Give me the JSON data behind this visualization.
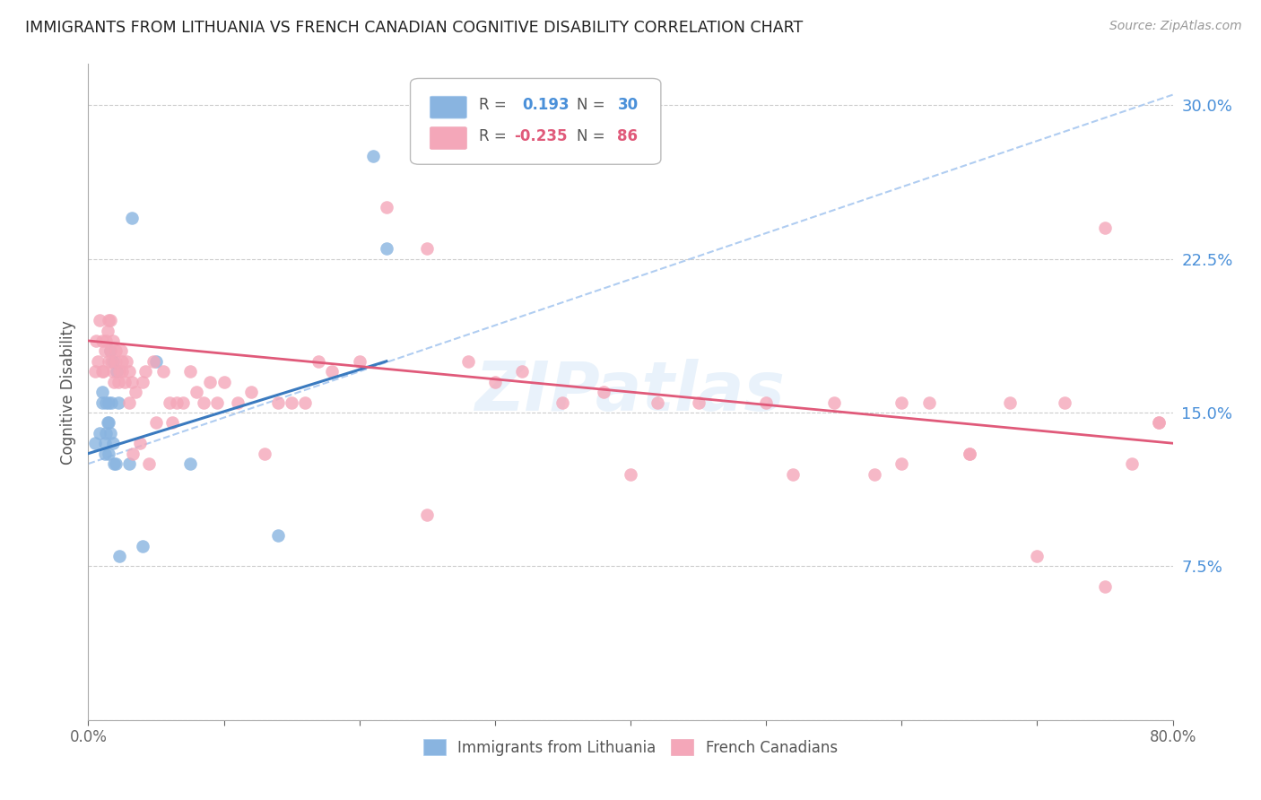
{
  "title": "IMMIGRANTS FROM LITHUANIA VS FRENCH CANADIAN COGNITIVE DISABILITY CORRELATION CHART",
  "source": "Source: ZipAtlas.com",
  "ylabel": "Cognitive Disability",
  "xlim": [
    0.0,
    0.8
  ],
  "ylim": [
    0.0,
    0.32
  ],
  "xticks": [
    0.0,
    0.1,
    0.2,
    0.3,
    0.4,
    0.5,
    0.6,
    0.7,
    0.8
  ],
  "yticks": [
    0.0,
    0.075,
    0.15,
    0.225,
    0.3
  ],
  "grid_color": "#cccccc",
  "background_color": "#ffffff",
  "blue_color": "#89b4e0",
  "pink_color": "#f4a7b9",
  "blue_line_color": "#3a7abf",
  "pink_line_color": "#e05a7a",
  "blue_dash_color": "#a8c8f0",
  "watermark": "ZIPatlas",
  "legend1_label": "Immigrants from Lithuania",
  "legend2_label": "French Canadians",
  "blue_line_x0": 0.0,
  "blue_line_y0": 0.13,
  "blue_line_x1": 0.22,
  "blue_line_y1": 0.175,
  "pink_line_x0": 0.0,
  "pink_line_y0": 0.185,
  "pink_line_x1": 0.8,
  "pink_line_y1": 0.135,
  "dash_line_x0": 0.0,
  "dash_line_y0": 0.125,
  "dash_line_x1": 0.8,
  "dash_line_y1": 0.305,
  "blue_x": [
    0.005,
    0.008,
    0.01,
    0.01,
    0.012,
    0.012,
    0.013,
    0.013,
    0.014,
    0.015,
    0.015,
    0.015,
    0.016,
    0.016,
    0.017,
    0.018,
    0.018,
    0.019,
    0.02,
    0.021,
    0.022,
    0.023,
    0.03,
    0.032,
    0.04,
    0.05,
    0.075,
    0.14,
    0.21,
    0.22
  ],
  "blue_y": [
    0.135,
    0.14,
    0.155,
    0.16,
    0.13,
    0.135,
    0.14,
    0.155,
    0.145,
    0.13,
    0.145,
    0.155,
    0.14,
    0.18,
    0.155,
    0.175,
    0.135,
    0.125,
    0.125,
    0.17,
    0.155,
    0.08,
    0.125,
    0.245,
    0.085,
    0.175,
    0.125,
    0.09,
    0.275,
    0.23
  ],
  "pink_x": [
    0.005,
    0.006,
    0.007,
    0.008,
    0.01,
    0.01,
    0.011,
    0.012,
    0.013,
    0.014,
    0.015,
    0.015,
    0.016,
    0.016,
    0.017,
    0.018,
    0.018,
    0.019,
    0.02,
    0.02,
    0.022,
    0.023,
    0.024,
    0.025,
    0.025,
    0.027,
    0.028,
    0.03,
    0.03,
    0.032,
    0.033,
    0.035,
    0.038,
    0.04,
    0.042,
    0.045,
    0.048,
    0.05,
    0.055,
    0.06,
    0.062,
    0.065,
    0.07,
    0.075,
    0.08,
    0.085,
    0.09,
    0.095,
    0.1,
    0.11,
    0.12,
    0.13,
    0.14,
    0.15,
    0.16,
    0.17,
    0.18,
    0.2,
    0.22,
    0.25,
    0.28,
    0.3,
    0.32,
    0.35,
    0.38,
    0.4,
    0.42,
    0.45,
    0.5,
    0.52,
    0.55,
    0.58,
    0.6,
    0.62,
    0.65,
    0.68,
    0.7,
    0.72,
    0.75,
    0.77,
    0.79,
    0.6,
    0.65,
    0.75,
    0.79,
    0.25
  ],
  "pink_y": [
    0.17,
    0.185,
    0.175,
    0.195,
    0.17,
    0.185,
    0.17,
    0.18,
    0.185,
    0.19,
    0.195,
    0.175,
    0.18,
    0.195,
    0.175,
    0.17,
    0.185,
    0.165,
    0.175,
    0.18,
    0.165,
    0.17,
    0.18,
    0.175,
    0.17,
    0.165,
    0.175,
    0.155,
    0.17,
    0.165,
    0.13,
    0.16,
    0.135,
    0.165,
    0.17,
    0.125,
    0.175,
    0.145,
    0.17,
    0.155,
    0.145,
    0.155,
    0.155,
    0.17,
    0.16,
    0.155,
    0.165,
    0.155,
    0.165,
    0.155,
    0.16,
    0.13,
    0.155,
    0.155,
    0.155,
    0.175,
    0.17,
    0.175,
    0.25,
    0.23,
    0.175,
    0.165,
    0.17,
    0.155,
    0.16,
    0.12,
    0.155,
    0.155,
    0.155,
    0.12,
    0.155,
    0.12,
    0.125,
    0.155,
    0.13,
    0.155,
    0.08,
    0.155,
    0.065,
    0.125,
    0.145,
    0.155,
    0.13,
    0.24,
    0.145,
    0.1
  ]
}
